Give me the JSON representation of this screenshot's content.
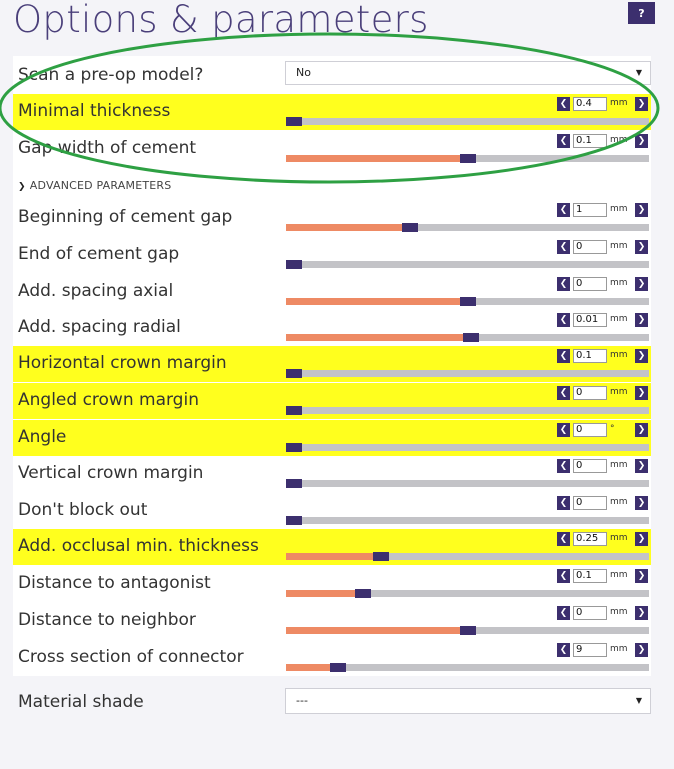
{
  "header": {
    "title": "Options & parameters",
    "help_label": "?"
  },
  "scan_model": {
    "label": "Scan a pre-op model?",
    "value": "No"
  },
  "advanced_section": {
    "label": "ADVANCED PARAMETERS"
  },
  "params": [
    {
      "label": "Minimal thickness",
      "value": "0.4",
      "unit": "mm",
      "fill": 0,
      "thumb": 0,
      "highlighted": true
    },
    {
      "label": "Gap width of cement",
      "value": "0.1",
      "unit": "mm",
      "fill": 0.478,
      "thumb": 0.478,
      "highlighted": false
    },
    {
      "label": "Beginning of cement gap",
      "value": "1",
      "unit": "mm",
      "fill": 0.32,
      "thumb": 0.32,
      "highlighted": false
    },
    {
      "label": "End of cement gap",
      "value": "0",
      "unit": "mm",
      "fill": 0,
      "thumb": 0,
      "highlighted": false
    },
    {
      "label": "Add. spacing axial",
      "value": "0",
      "unit": "mm",
      "fill": 0.478,
      "thumb": 0.478,
      "highlighted": false
    },
    {
      "label": "Add. spacing radial",
      "value": "0.01",
      "unit": "mm",
      "fill": 0.487,
      "thumb": 0.487,
      "highlighted": false
    },
    {
      "label": "Horizontal crown margin",
      "value": "0.1",
      "unit": "mm",
      "fill": 0,
      "thumb": 0,
      "highlighted": true
    },
    {
      "label": "Angled crown margin",
      "value": "0",
      "unit": "mm",
      "fill": 0,
      "thumb": 0,
      "highlighted": true
    },
    {
      "label": "Angle",
      "value": "0",
      "unit": "°",
      "fill": 0,
      "thumb": 0,
      "highlighted": true
    },
    {
      "label": "Vertical crown margin",
      "value": "0",
      "unit": "mm",
      "fill": 0,
      "thumb": 0,
      "highlighted": false
    },
    {
      "label": "Don't block out",
      "value": "0",
      "unit": "mm",
      "fill": 0,
      "thumb": 0,
      "highlighted": false
    },
    {
      "label": "Add. occlusal min. thickness",
      "value": "0.25",
      "unit": "mm",
      "fill": 0.24,
      "thumb": 0.24,
      "highlighted": true
    },
    {
      "label": "Distance to antagonist",
      "value": "0.1",
      "unit": "mm",
      "fill": 0.19,
      "thumb": 0.19,
      "highlighted": false
    },
    {
      "label": "Distance to neighbor",
      "value": "0",
      "unit": "mm",
      "fill": 0.478,
      "thumb": 0.478,
      "highlighted": false
    },
    {
      "label": "Cross section of connector",
      "value": "9",
      "unit": "mm",
      "fill": 0.12,
      "thumb": 0.12,
      "highlighted": false
    }
  ],
  "material_shade": {
    "label": "Material shade",
    "value": "---"
  },
  "colors": {
    "highlight": "#ffff1e",
    "accent": "#3c2f6e",
    "slider_fill": "#ee8a64",
    "slider_track": "#c3c3c7",
    "annotation_ellipse": "#2ea043",
    "title": "#4a3f7a"
  },
  "icons": {
    "decrement": "chevron-left-icon",
    "increment": "chevron-right-icon",
    "dropdown": "caret-down-icon",
    "section_toggle": "chevron-down-icon"
  }
}
